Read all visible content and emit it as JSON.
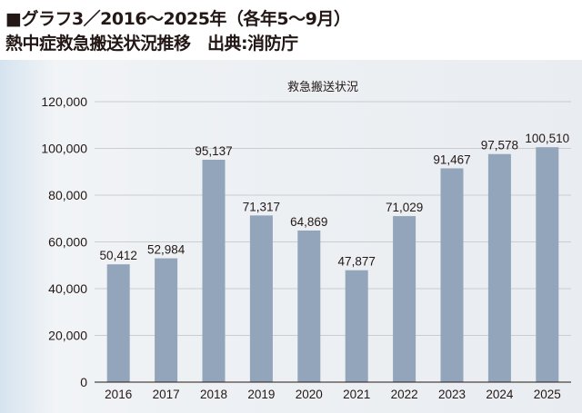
{
  "header": {
    "title": "■グラフ3／2016～2025年（各年5～9月）",
    "subtitle": "熱中症救急搬送状況推移　出典:消防庁"
  },
  "colors": {
    "bar": "#93a5bb",
    "gridline": "#c9cdd2",
    "axis": "#231815"
  },
  "chart_data": {
    "type": "bar",
    "title": "救急搬送状況",
    "categories": [
      "2016",
      "2017",
      "2018",
      "2019",
      "2020",
      "2021",
      "2022",
      "2023",
      "2024",
      "2025"
    ],
    "values": [
      50412,
      52984,
      95137,
      71317,
      64869,
      47877,
      71029,
      91467,
      97578,
      100510
    ],
    "value_labels": [
      "50,412",
      "52,984",
      "95,137",
      "71,317",
      "64,869",
      "47,877",
      "71,029",
      "91,467",
      "97,578",
      "100,510"
    ],
    "yticks": [
      0,
      20000,
      40000,
      60000,
      80000,
      100000,
      120000
    ],
    "ytick_labels": [
      "0",
      "20,000",
      "40,000",
      "60,000",
      "80,000",
      "100,000",
      "120,000"
    ],
    "ylim": [
      0,
      120000
    ],
    "grid": true,
    "legend": "none"
  }
}
